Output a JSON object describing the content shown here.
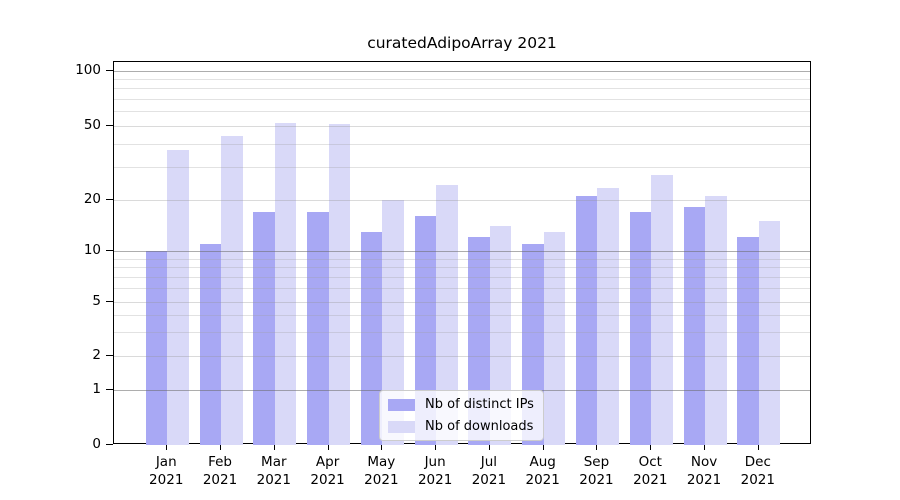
{
  "figure": {
    "title": "curatedAdipoArray 2021"
  },
  "chart_data": {
    "type": "bar",
    "title": "curatedAdipoArray 2021",
    "categories": [
      "Jan 2021",
      "Feb 2021",
      "Mar 2021",
      "Apr 2021",
      "May 2021",
      "Jun 2021",
      "Jul 2021",
      "Aug 2021",
      "Sep 2021",
      "Oct 2021",
      "Nov 2021",
      "Dec 2021"
    ],
    "series": [
      {
        "name": "Nb of distinct IPs",
        "color": "#a8a8f4",
        "values": [
          10,
          11,
          17,
          17,
          13,
          16,
          12,
          11,
          21,
          17,
          18,
          12
        ]
      },
      {
        "name": "Nb of downloads",
        "color": "#d9d9f8",
        "values": [
          37,
          44,
          52,
          51,
          20,
          24,
          14,
          13,
          23,
          27,
          21,
          15
        ]
      }
    ],
    "xlabel": "",
    "ylabel": "",
    "y_axis": {
      "scale": "log-like",
      "ticks": [
        0,
        1,
        2,
        5,
        10,
        20,
        50,
        100
      ],
      "minor_ticks": [
        3,
        4,
        6,
        7,
        8,
        9,
        30,
        40,
        60,
        70,
        80,
        90
      ],
      "range": [
        0,
        115
      ]
    },
    "grid": "horizontal",
    "legend_position": "lower center"
  },
  "colors": {
    "bar_distinct_ips": "#a8a8f4",
    "bar_downloads": "#d9d9f8",
    "grid_major": "#b0b0b0",
    "grid_minor": "#e2e2e2",
    "axis": "#000000",
    "text": "#000000",
    "legend_border": "#cccccc",
    "legend_background": "#ffffff"
  }
}
